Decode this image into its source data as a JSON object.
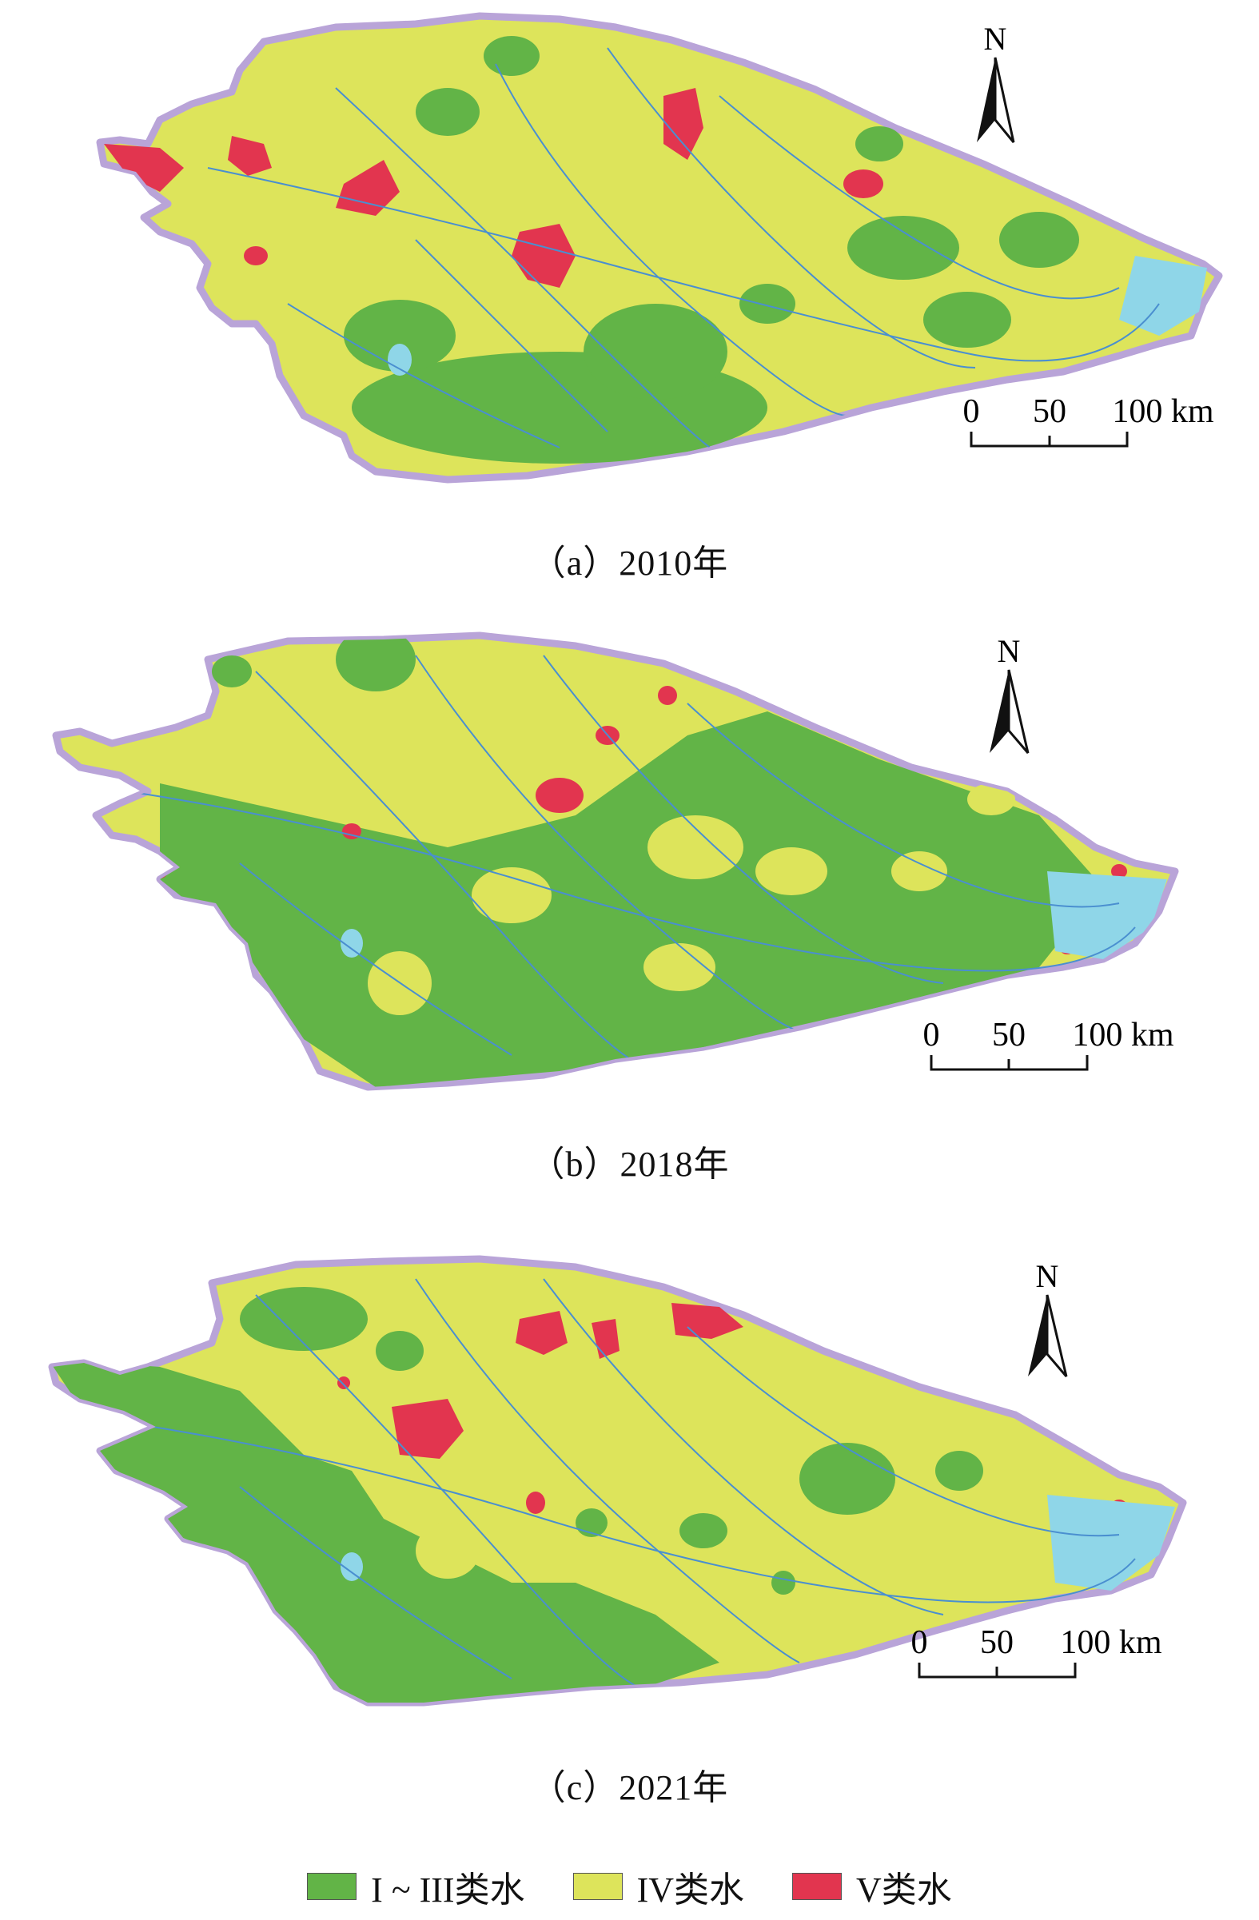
{
  "colors": {
    "class_1_3": "#62b447",
    "class_4": "#dde45b",
    "class_5": "#e2354f",
    "lake": "#8fd6e8",
    "boundary": "#b9a4d8",
    "river": "#4a8fd0"
  },
  "maps": [
    {
      "caption": "（a）2010年",
      "north": "N",
      "scale_labels": [
        "0",
        "50",
        "100 km"
      ]
    },
    {
      "caption": "（b）2018年",
      "north": "N",
      "scale_labels": [
        "0",
        "50",
        "100 km"
      ]
    },
    {
      "caption": "（c）2021年",
      "north": "N",
      "scale_labels": [
        "0",
        "50",
        "100 km"
      ]
    }
  ],
  "legend": {
    "items": [
      {
        "label": "I ~ III类水",
        "color": "#62b447"
      },
      {
        "label": "IV类水",
        "color": "#dde45b"
      },
      {
        "label": "V类水",
        "color": "#e2354f"
      }
    ]
  }
}
